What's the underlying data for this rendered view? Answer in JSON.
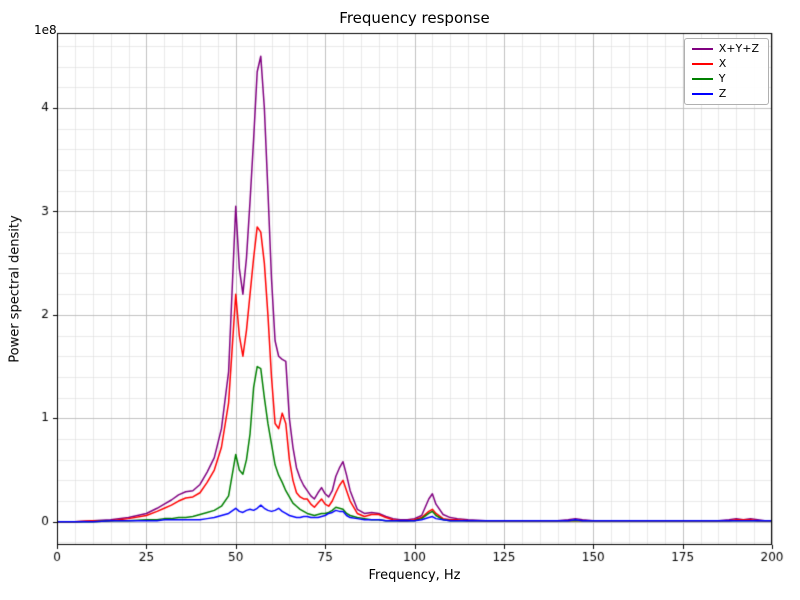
{
  "chart_data": {
    "type": "line",
    "title": "Frequency response",
    "xlabel": "Frequency, Hz",
    "ylabel": "Power spectral density",
    "y_offset_text": "1e8",
    "y_unit_multiplier": 100000000,
    "xlim": [
      0,
      200
    ],
    "ylim": [
      -0.225,
      4.725
    ],
    "xticks": [
      0,
      25,
      50,
      75,
      100,
      125,
      150,
      175,
      200
    ],
    "xtick_labels": [
      "0",
      "25",
      "50",
      "75",
      "100",
      "125",
      "150",
      "175",
      "200"
    ],
    "yticks": [
      0,
      1,
      2,
      3,
      4
    ],
    "ytick_labels": [
      "0",
      "1",
      "2",
      "3",
      "4"
    ],
    "minor_x_step": 5,
    "minor_y_step": 0.2,
    "grid": true,
    "legend_position": "upper right",
    "colors": {
      "major_grid": "#bcbcbc",
      "minor_grid": "#e0e0e0",
      "axis": "#000000",
      "text": "#000000"
    },
    "x": [
      0,
      5,
      10,
      15,
      20,
      25,
      28,
      30,
      32,
      34,
      36,
      38,
      40,
      42,
      44,
      46,
      48,
      50,
      51,
      52,
      53,
      54,
      55,
      56,
      57,
      58,
      59,
      60,
      61,
      62,
      63,
      64,
      65,
      66,
      67,
      68,
      69,
      70,
      71,
      72,
      73,
      74,
      75,
      76,
      77,
      78,
      79,
      80,
      81,
      82,
      84,
      86,
      88,
      90,
      92,
      94,
      96,
      98,
      100,
      102,
      104,
      105,
      106,
      108,
      110,
      112,
      115,
      120,
      125,
      130,
      135,
      140,
      143,
      145,
      147,
      150,
      155,
      160,
      165,
      170,
      175,
      180,
      185,
      188,
      190,
      192,
      194,
      196,
      198,
      200
    ],
    "series": [
      {
        "name": "X+Y+Z",
        "color": "#800080",
        "values": [
          0.0,
          0.0,
          0.01,
          0.02,
          0.04,
          0.08,
          0.13,
          0.17,
          0.21,
          0.26,
          0.29,
          0.3,
          0.36,
          0.48,
          0.62,
          0.9,
          1.45,
          3.05,
          2.45,
          2.2,
          2.55,
          3.1,
          3.7,
          4.35,
          4.5,
          4.0,
          3.2,
          2.35,
          1.75,
          1.6,
          1.57,
          1.55,
          1.0,
          0.72,
          0.52,
          0.42,
          0.35,
          0.3,
          0.25,
          0.22,
          0.28,
          0.33,
          0.27,
          0.24,
          0.3,
          0.44,
          0.52,
          0.58,
          0.45,
          0.3,
          0.12,
          0.08,
          0.09,
          0.08,
          0.05,
          0.03,
          0.02,
          0.02,
          0.03,
          0.06,
          0.22,
          0.27,
          0.17,
          0.07,
          0.04,
          0.03,
          0.02,
          0.01,
          0.01,
          0.01,
          0.01,
          0.01,
          0.02,
          0.03,
          0.02,
          0.01,
          0.01,
          0.01,
          0.01,
          0.01,
          0.01,
          0.01,
          0.01,
          0.02,
          0.03,
          0.02,
          0.03,
          0.02,
          0.01,
          0.01
        ]
      },
      {
        "name": "X",
        "color": "#ff0000",
        "values": [
          0.0,
          0.0,
          0.01,
          0.01,
          0.03,
          0.06,
          0.1,
          0.13,
          0.16,
          0.2,
          0.23,
          0.24,
          0.28,
          0.38,
          0.5,
          0.72,
          1.15,
          2.2,
          1.8,
          1.6,
          1.85,
          2.2,
          2.55,
          2.85,
          2.8,
          2.5,
          2.0,
          1.4,
          0.95,
          0.9,
          1.05,
          0.95,
          0.6,
          0.4,
          0.28,
          0.24,
          0.22,
          0.22,
          0.17,
          0.14,
          0.18,
          0.22,
          0.17,
          0.15,
          0.2,
          0.28,
          0.35,
          0.4,
          0.3,
          0.2,
          0.08,
          0.05,
          0.07,
          0.07,
          0.04,
          0.02,
          0.01,
          0.01,
          0.02,
          0.04,
          0.1,
          0.12,
          0.08,
          0.03,
          0.02,
          0.02,
          0.01,
          0.01,
          0.01,
          0.01,
          0.01,
          0.01,
          0.01,
          0.01,
          0.01,
          0.01,
          0.01,
          0.01,
          0.01,
          0.01,
          0.01,
          0.01,
          0.01,
          0.01,
          0.02,
          0.02,
          0.02,
          0.01,
          0.01,
          0.01
        ]
      },
      {
        "name": "Y",
        "color": "#008000",
        "values": [
          0.0,
          0.0,
          0.0,
          0.01,
          0.01,
          0.02,
          0.02,
          0.03,
          0.03,
          0.04,
          0.04,
          0.05,
          0.07,
          0.09,
          0.11,
          0.15,
          0.25,
          0.65,
          0.5,
          0.46,
          0.6,
          0.85,
          1.3,
          1.5,
          1.48,
          1.2,
          0.95,
          0.75,
          0.55,
          0.45,
          0.38,
          0.3,
          0.24,
          0.18,
          0.15,
          0.12,
          0.1,
          0.08,
          0.07,
          0.06,
          0.07,
          0.08,
          0.08,
          0.09,
          0.11,
          0.14,
          0.13,
          0.12,
          0.08,
          0.06,
          0.04,
          0.03,
          0.02,
          0.02,
          0.01,
          0.01,
          0.01,
          0.01,
          0.01,
          0.03,
          0.08,
          0.1,
          0.06,
          0.02,
          0.01,
          0.01,
          0.01,
          0.01,
          0.01,
          0.01,
          0.01,
          0.01,
          0.01,
          0.01,
          0.01,
          0.01,
          0.01,
          0.01,
          0.01,
          0.01,
          0.01,
          0.01,
          0.01,
          0.01,
          0.01,
          0.01,
          0.01,
          0.01,
          0.01,
          0.01
        ]
      },
      {
        "name": "Z",
        "color": "#0000ff",
        "values": [
          0.0,
          0.0,
          0.0,
          0.01,
          0.01,
          0.01,
          0.01,
          0.02,
          0.02,
          0.02,
          0.02,
          0.02,
          0.02,
          0.03,
          0.04,
          0.06,
          0.08,
          0.13,
          0.1,
          0.09,
          0.11,
          0.12,
          0.11,
          0.13,
          0.16,
          0.13,
          0.11,
          0.1,
          0.11,
          0.13,
          0.1,
          0.08,
          0.06,
          0.05,
          0.04,
          0.04,
          0.05,
          0.05,
          0.04,
          0.04,
          0.04,
          0.05,
          0.06,
          0.08,
          0.09,
          0.11,
          0.1,
          0.1,
          0.06,
          0.04,
          0.03,
          0.02,
          0.02,
          0.02,
          0.01,
          0.01,
          0.01,
          0.01,
          0.01,
          0.02,
          0.04,
          0.05,
          0.03,
          0.02,
          0.01,
          0.01,
          0.01,
          0.01,
          0.01,
          0.01,
          0.01,
          0.01,
          0.01,
          0.02,
          0.01,
          0.01,
          0.01,
          0.01,
          0.01,
          0.01,
          0.01,
          0.01,
          0.01,
          0.01,
          0.01,
          0.01,
          0.01,
          0.01,
          0.01,
          0.01
        ]
      }
    ]
  }
}
